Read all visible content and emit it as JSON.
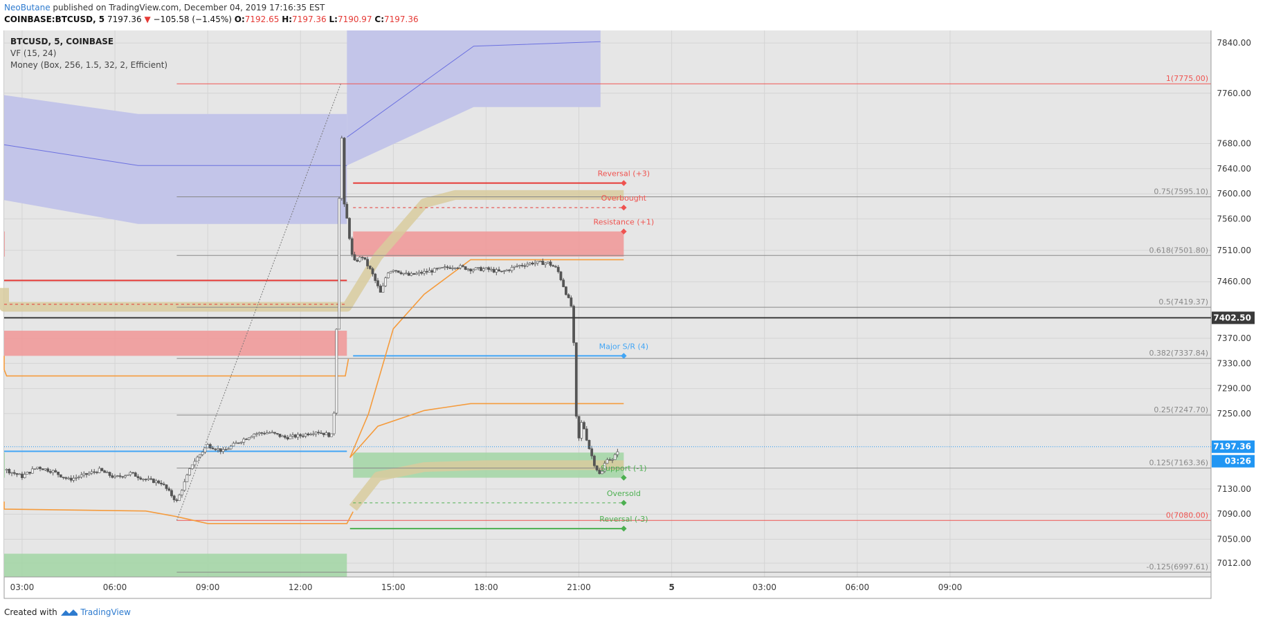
{
  "header": {
    "author": "NeoButane",
    "published": "published on TradingView.com, December 04, 2019 17:16:35 EST",
    "symbol": "COINBASE:BTCUSD, 5",
    "last": "7197.36",
    "arrow": "▼",
    "change": "−105.58 (−1.45%)",
    "o_label": "O:",
    "o": "7192.65",
    "h_label": "H:",
    "h": "7197.36",
    "l_label": "L:",
    "l": "7190.97",
    "c_label": "C:",
    "c": "7197.36"
  },
  "legend": {
    "symbol": "BTCUSD, 5, COINBASE",
    "ind1": "VF (15, 24)",
    "ind2": "Money (Box, 256, 1.5, 32, 2, Efficient)"
  },
  "footer": {
    "created": "Created with",
    "brand": "TradingView"
  },
  "chart_data": {
    "type": "candlestick",
    "symbol": "BTCUSD, 5, COINBASE",
    "ylim": [
      6990,
      7860
    ],
    "y_ticks": [
      7840,
      7760,
      7680,
      7640,
      7600,
      7560,
      7510,
      7460,
      7370,
      7330,
      7290,
      7250,
      7130,
      7090,
      7050,
      7012
    ],
    "x_ticks": [
      {
        "label": "03:00",
        "t": 3
      },
      {
        "label": "06:00",
        "t": 6
      },
      {
        "label": "09:00",
        "t": 9
      },
      {
        "label": "12:00",
        "t": 12
      },
      {
        "label": "15:00",
        "t": 15
      },
      {
        "label": "18:00",
        "t": 18
      },
      {
        "label": "21:00",
        "t": 21
      },
      {
        "label": "5",
        "t": 24
      },
      {
        "label": "03:00",
        "t": 27
      },
      {
        "label": "06:00",
        "t": 30
      },
      {
        "label": "09:00",
        "t": 33
      }
    ],
    "price_badges": [
      {
        "label": "7402.50",
        "price": 7402.5,
        "color": "#3a3a3a"
      },
      {
        "label": "7197.36",
        "price": 7197.36,
        "color": "#2196f3"
      },
      {
        "label": "03:26",
        "price": 7175,
        "color": "#2196f3"
      }
    ],
    "fib_levels": [
      {
        "label": "1(7775.00)",
        "price": 7775.0,
        "color": "#ef5350"
      },
      {
        "label": "0.75(7595.10)",
        "price": 7595.1,
        "color": "#888888"
      },
      {
        "label": "0.618(7501.80)",
        "price": 7501.8,
        "color": "#888888"
      },
      {
        "label": "0.5(7419.37)",
        "price": 7419.37,
        "color": "#888888"
      },
      {
        "label": "0.382(7337.84)",
        "price": 7337.84,
        "color": "#888888"
      },
      {
        "label": "0.25(7247.70)",
        "price": 7247.7,
        "color": "#888888"
      },
      {
        "label": "0.125(7163.36)",
        "price": 7163.36,
        "color": "#888888"
      },
      {
        "label": "0(7080.00)",
        "price": 7080.0,
        "color": "#ef5350"
      },
      {
        "label": "-0.125(6997.61)",
        "price": 6997.61,
        "color": "#888888"
      }
    ],
    "sr_labels": [
      {
        "label": "Reversal (+3)",
        "price": 7617,
        "color": "#ef5350"
      },
      {
        "label": "Overbought",
        "price": 7578,
        "color": "#ef5350"
      },
      {
        "label": "Resistance (+1)",
        "price": 7540,
        "color": "#ef5350"
      },
      {
        "label": "Major S/R (4)",
        "price": 7342,
        "color": "#42a5f5"
      },
      {
        "label": "Support (-1)",
        "price": 7148,
        "color": "#4caf50"
      },
      {
        "label": "Oversold",
        "price": 7108,
        "color": "#4caf50"
      },
      {
        "label": "Reversal (-3)",
        "price": 7067,
        "color": "#4caf50"
      }
    ],
    "sr_lines": [
      {
        "t0": 0.0,
        "t1": 0.5,
        "price": 7617,
        "color": "#e53935",
        "dash": false
      },
      {
        "t0": 0.0,
        "t1": 0.5,
        "price": 7578,
        "color": "#e53935",
        "dash": true
      },
      {
        "t0": 0.0,
        "t1": 0.5,
        "price": 7342,
        "color": "#42a5f5",
        "dash": false
      },
      {
        "t0": 0.0,
        "t1": 0.5,
        "price": 7108,
        "color": "#4caf50",
        "dash": true
      },
      {
        "t0": 0.0,
        "t1": 0.5,
        "price": 7067,
        "color": "#4caf50",
        "dash": false
      },
      {
        "t0": 0.65,
        "t1": 13.5,
        "price": 7462,
        "color": "#e53935",
        "dash": false
      },
      {
        "t0": 0.65,
        "t1": 13.5,
        "price": 7424,
        "color": "#e53935",
        "dash": true
      },
      {
        "t0": 0.75,
        "t1": 13.5,
        "price": 7190,
        "color": "#42a5f5",
        "dash": false
      },
      {
        "t0": 13.7,
        "t1": 22.45,
        "price": 7617,
        "color": "#e53935",
        "dash": false
      },
      {
        "t0": 13.7,
        "t1": 22.45,
        "price": 7578,
        "color": "#e53935",
        "dash": true
      },
      {
        "t0": 13.7,
        "t1": 22.45,
        "price": 7342,
        "color": "#42a5f5",
        "dash": false
      },
      {
        "t0": 13.7,
        "t1": 22.45,
        "price": 7108,
        "color": "#4caf50",
        "dash": true
      },
      {
        "t0": 13.6,
        "t1": 22.45,
        "price": 7067,
        "color": "#4caf50",
        "dash": false
      }
    ],
    "zones": [
      {
        "t0": 0.0,
        "t1": 0.5,
        "p0": 7500,
        "p1": 7540,
        "color": "#ef9a9a"
      },
      {
        "t0": 0.65,
        "t1": 13.5,
        "p0": 7342,
        "p1": 7382,
        "color": "#ef9a9a"
      },
      {
        "t0": 13.7,
        "t1": 22.45,
        "p0": 7500,
        "p1": 7540,
        "color": "#ef9a9a"
      },
      {
        "t0": 0.0,
        "t1": 0.5,
        "p0": 7148,
        "p1": 7188,
        "color": "#a5d6a7"
      },
      {
        "t0": 13.7,
        "t1": 22.45,
        "p0": 7148,
        "p1": 7188,
        "color": "#a5d6a7"
      },
      {
        "t0": 0.65,
        "t1": 13.5,
        "p0": 6990,
        "p1": 7027,
        "color": "#a5d6a7"
      }
    ],
    "value_zones": [
      {
        "t0": 0.0,
        "t1": 13.5,
        "p_top": [
          7757,
          7727,
          7727
        ],
        "p_bot": [
          7590,
          7552,
          7552
        ],
        "mid": [
          7678,
          7645,
          7645
        ]
      },
      {
        "t0": 13.5,
        "t1": 21.7,
        "p_top": [
          7860,
          7860,
          7860
        ],
        "p_bot": [
          7645,
          7738,
          7738
        ],
        "mid": [
          7690,
          7835,
          7842
        ]
      }
    ],
    "orange_lines": [
      {
        "points": [
          [
            0.0,
            7342
          ],
          [
            1.5,
            7320
          ],
          [
            2.5,
            7310
          ],
          [
            13.45,
            7310
          ],
          [
            13.55,
            7337
          ]
        ]
      },
      {
        "points": [
          [
            13.6,
            7180
          ],
          [
            14.2,
            7250
          ],
          [
            15.0,
            7385
          ],
          [
            16.0,
            7440
          ],
          [
            17.5,
            7495
          ],
          [
            22.45,
            7495
          ]
        ]
      },
      {
        "points": [
          [
            13.6,
            7180
          ],
          [
            14.5,
            7230
          ],
          [
            16.0,
            7255
          ],
          [
            17.5,
            7266
          ],
          [
            22.45,
            7266
          ]
        ]
      },
      {
        "points": [
          [
            0.0,
            7110
          ],
          [
            1.0,
            7098
          ],
          [
            7.0,
            7095
          ],
          [
            8.0,
            7086
          ],
          [
            9.0,
            7075
          ],
          [
            13.5,
            7075
          ],
          [
            13.7,
            7094
          ]
        ]
      }
    ],
    "khaki_bands": [
      {
        "points": [
          [
            0.0,
            7450
          ],
          [
            1.0,
            7425
          ],
          [
            2.0,
            7420
          ],
          [
            13.5,
            7420
          ],
          [
            14.5,
            7500
          ],
          [
            16.0,
            7585
          ],
          [
            17.0,
            7598
          ],
          [
            22.45,
            7598
          ]
        ]
      },
      {
        "points": [
          [
            13.7,
            7100
          ],
          [
            14.5,
            7150
          ],
          [
            16.0,
            7165
          ],
          [
            18.0,
            7168
          ],
          [
            22.45,
            7168
          ]
        ]
      }
    ],
    "dotted_trend": [
      [
        8.0,
        7080
      ],
      [
        13.3,
        7775
      ]
    ],
    "price_path": [
      [
        0.0,
        7165
      ],
      [
        0.5,
        7155
      ],
      [
        1.0,
        7168
      ],
      [
        1.5,
        7175
      ],
      [
        2.0,
        7170
      ],
      [
        2.5,
        7160
      ],
      [
        3.0,
        7150
      ],
      [
        3.5,
        7165
      ],
      [
        4.0,
        7158
      ],
      [
        4.5,
        7145
      ],
      [
        5.0,
        7152
      ],
      [
        5.5,
        7160
      ],
      [
        6.0,
        7148
      ],
      [
        6.5,
        7155
      ],
      [
        7.0,
        7145
      ],
      [
        7.5,
        7140
      ],
      [
        8.0,
        7110
      ],
      [
        8.5,
        7170
      ],
      [
        9.0,
        7200
      ],
      [
        9.5,
        7190
      ],
      [
        10.0,
        7205
      ],
      [
        10.5,
        7218
      ],
      [
        11.0,
        7220
      ],
      [
        11.5,
        7212
      ],
      [
        12.0,
        7215
      ],
      [
        12.5,
        7222
      ],
      [
        13.0,
        7215
      ],
      [
        13.1,
        7260
      ],
      [
        13.2,
        7450
      ],
      [
        13.3,
        7740
      ],
      [
        13.4,
        7585
      ],
      [
        13.5,
        7560
      ],
      [
        13.7,
        7490
      ],
      [
        14.0,
        7500
      ],
      [
        14.3,
        7475
      ],
      [
        14.6,
        7440
      ],
      [
        14.8,
        7475
      ],
      [
        15.0,
        7480
      ],
      [
        15.5,
        7470
      ],
      [
        16.0,
        7475
      ],
      [
        16.5,
        7480
      ],
      [
        17.0,
        7485
      ],
      [
        17.5,
        7480
      ],
      [
        18.0,
        7480
      ],
      [
        18.5,
        7475
      ],
      [
        19.0,
        7485
      ],
      [
        19.5,
        7490
      ],
      [
        20.0,
        7490
      ],
      [
        20.3,
        7480
      ],
      [
        20.6,
        7440
      ],
      [
        20.8,
        7415
      ],
      [
        20.9,
        7250
      ],
      [
        21.0,
        7210
      ],
      [
        21.1,
        7240
      ],
      [
        21.3,
        7200
      ],
      [
        21.5,
        7170
      ],
      [
        21.7,
        7150
      ],
      [
        21.9,
        7180
      ],
      [
        22.1,
        7175
      ],
      [
        22.3,
        7197.36
      ]
    ]
  },
  "colors": {
    "plot_bg": "#e6e6e6",
    "axis_text": "#3a3a3a",
    "grid": "#d4d4d4",
    "value_zone": "#c3c5e9",
    "value_mid": "#6b70e0",
    "khaki": "#d8cb9e",
    "candle": "#555555"
  }
}
